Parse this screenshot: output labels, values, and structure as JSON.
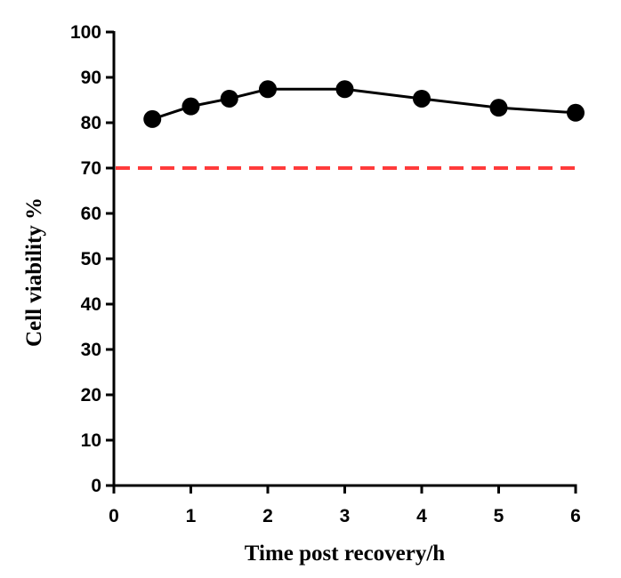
{
  "chart_data": {
    "type": "line",
    "title": "",
    "xlabel": "Time post recovery/h",
    "ylabel": "Cell viability %",
    "xlim": [
      0,
      6
    ],
    "ylim": [
      0,
      100
    ],
    "xticks": [
      0,
      1,
      2,
      3,
      4,
      5,
      6
    ],
    "yticks": [
      0,
      10,
      20,
      30,
      40,
      50,
      60,
      70,
      80,
      90,
      100
    ],
    "grid": false,
    "legend": "none",
    "series": [
      {
        "x": [
          0.5,
          1,
          1.5,
          2,
          3,
          4,
          5,
          6
        ],
        "y": [
          80.8,
          83.6,
          85.3,
          87.4,
          87.4,
          85.3,
          83.3,
          82.2
        ],
        "color": "#000000",
        "marker": "circle"
      }
    ],
    "reference_lines": [
      {
        "y": 70,
        "style": "dashed",
        "color": "#ff3b3b"
      }
    ]
  }
}
